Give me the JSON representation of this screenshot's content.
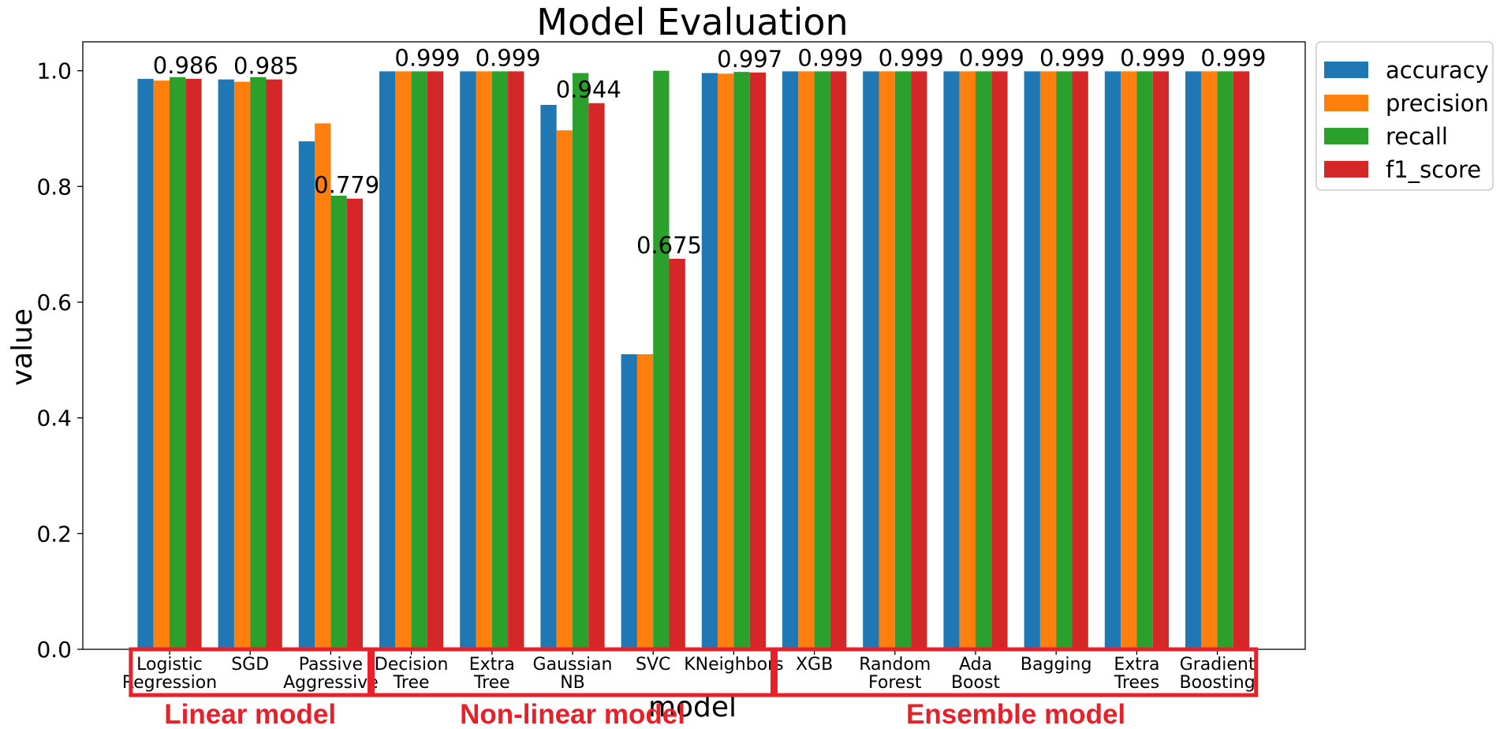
{
  "chart_data": {
    "type": "bar",
    "title": "Model Evaluation",
    "xlabel": "model",
    "ylabel": "value",
    "ylim": [
      0,
      1.05
    ],
    "yticks": [
      "0.0",
      "0.2",
      "0.4",
      "0.6",
      "0.8",
      "1.0"
    ],
    "grid": false,
    "legend_position": "outside-top-right",
    "categories": [
      [
        "Logistic",
        "Regression"
      ],
      [
        "SGD"
      ],
      [
        "Passive",
        "Aggressive"
      ],
      [
        "Decision",
        "Tree"
      ],
      [
        "Extra",
        "Tree"
      ],
      [
        "Gaussian",
        "NB"
      ],
      [
        "SVC"
      ],
      [
        "KNeighbors"
      ],
      [
        "XGB"
      ],
      [
        "Random",
        "Forest"
      ],
      [
        "Ada",
        "Boost"
      ],
      [
        "Bagging"
      ],
      [
        "Extra",
        "Trees"
      ],
      [
        "Gradient",
        "Boosting"
      ]
    ],
    "series": [
      {
        "name": "accuracy",
        "color": "#1f77b4",
        "values": [
          0.986,
          0.985,
          0.878,
          0.999,
          0.999,
          0.941,
          0.51,
          0.996,
          0.999,
          0.999,
          0.999,
          0.999,
          0.999,
          0.999
        ]
      },
      {
        "name": "precision",
        "color": "#ff7f0e",
        "values": [
          0.983,
          0.981,
          0.909,
          0.999,
          0.999,
          0.897,
          0.51,
          0.995,
          0.999,
          0.999,
          0.999,
          0.999,
          0.999,
          0.999
        ]
      },
      {
        "name": "recall",
        "color": "#2ca02c",
        "values": [
          0.989,
          0.989,
          0.784,
          0.999,
          0.999,
          0.996,
          1.0,
          0.998,
          0.999,
          0.999,
          0.999,
          0.999,
          0.999,
          0.999
        ]
      },
      {
        "name": "f1_score",
        "color": "#d62728",
        "values": [
          0.986,
          0.985,
          0.779,
          0.999,
          0.999,
          0.944,
          0.675,
          0.997,
          0.999,
          0.999,
          0.999,
          0.999,
          0.999,
          0.999
        ]
      }
    ],
    "data_labels": [
      "0.986",
      "0.985",
      "0.779",
      "0.999",
      "0.999",
      "0.944",
      "0.675",
      "0.997",
      "0.999",
      "0.999",
      "0.999",
      "0.999",
      "0.999",
      "0.999"
    ],
    "groups": [
      {
        "label": "Linear model",
        "categories": [
          0,
          2
        ]
      },
      {
        "label": "Non-linear model",
        "categories": [
          3,
          7
        ]
      },
      {
        "label": "Ensemble model",
        "categories": [
          8,
          13
        ]
      }
    ],
    "group_color": "#e8202a"
  }
}
